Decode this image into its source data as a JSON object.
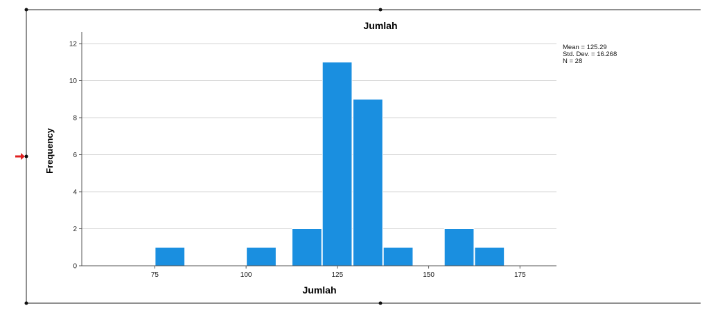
{
  "chart_data": {
    "type": "bar",
    "title": "Jumlah",
    "xlabel": "Jumlah",
    "ylabel": "Frequency",
    "xlim": [
      55,
      185
    ],
    "ylim": [
      0,
      12
    ],
    "xticks": [
      75,
      100,
      125,
      150,
      175
    ],
    "yticks": [
      0,
      2,
      4,
      6,
      8,
      10,
      12
    ],
    "bin_width": 8.3,
    "bins": [
      {
        "start": 75,
        "value": 1
      },
      {
        "start": 100,
        "value": 1
      },
      {
        "start": 112.5,
        "value": 2
      },
      {
        "start": 120.8,
        "value": 11
      },
      {
        "start": 129.2,
        "value": 9
      },
      {
        "start": 137.5,
        "value": 1
      },
      {
        "start": 162.5,
        "value": 1
      },
      {
        "start": 154.2,
        "value": 2
      }
    ],
    "bar_color": "#1a8fe0",
    "grid": "horizontal",
    "stats": {
      "mean": "Mean = 125.29",
      "std": "Std. Dev. = 16.268",
      "n": "N = 28"
    }
  }
}
